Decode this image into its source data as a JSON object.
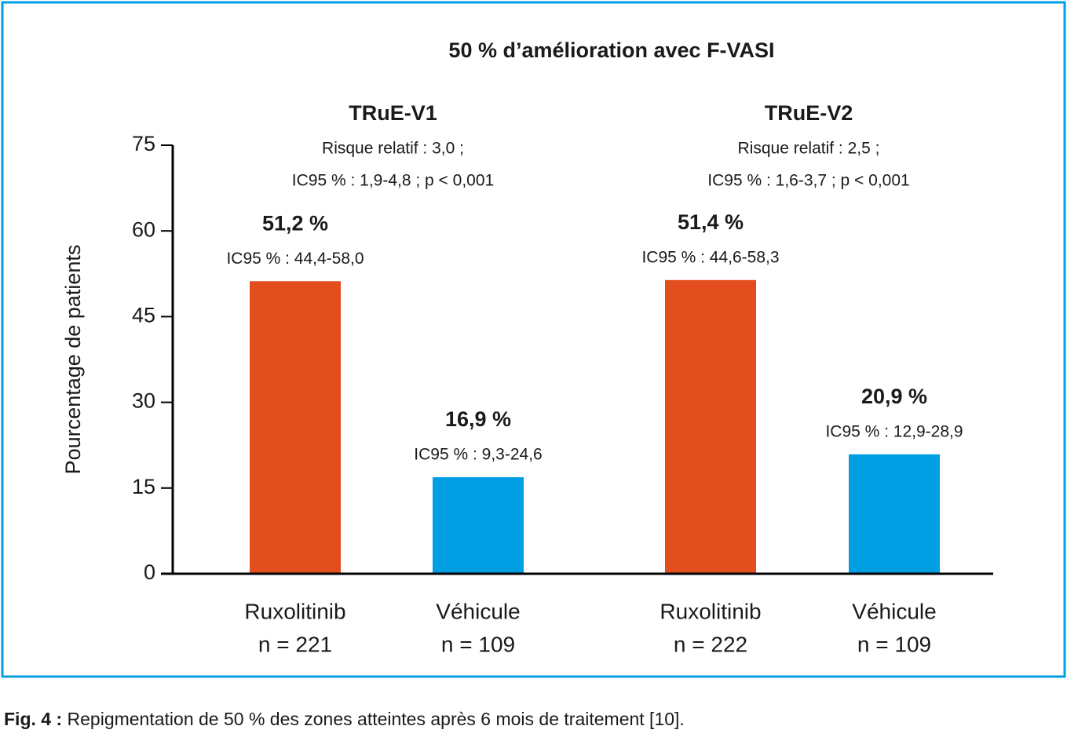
{
  "chart_data": {
    "type": "bar",
    "title": "50 % d’amélioration avec F-VASI",
    "y_label": "Pourcentage de patients",
    "ylim": [
      0,
      75
    ],
    "yticks": [
      0,
      15,
      30,
      45,
      60,
      75
    ],
    "groups": [
      {
        "name": "TRuE-V1",
        "notes": [
          "Risque relatif : 3,0 ;",
          "IC95 % : 1,9-4,8 ; p < 0,001"
        ]
      },
      {
        "name": "TRuE-V2",
        "notes": [
          "Risque relatif : 2,5 ;",
          "IC95 % : 1,6-3,7 ; p < 0,001"
        ]
      }
    ],
    "categories": [
      "Ruxolitinib",
      "Véhicule",
      "Ruxolitinib",
      "Véhicule"
    ],
    "category_counts": [
      "n = 221",
      "n = 109",
      "n = 222",
      "n = 109"
    ],
    "values": [
      51.2,
      16.9,
      51.4,
      20.9
    ],
    "value_labels": [
      "51,2 %",
      "16,9 %",
      "51,4 %",
      "20,9 %"
    ],
    "ci_labels": [
      "IC95 % : 44,4-58,0",
      "IC95 % : 9,3-24,6",
      "IC95 % : 44,6-58,3",
      "IC95 % : 12,9-28,9"
    ],
    "colors": [
      "#e34e1e",
      "#009fe3",
      "#e34e1e",
      "#009fe3"
    ]
  },
  "caption": {
    "label": "Fig. 4 :",
    "text": "Repigmentation de 50 % des zones atteintes après 6 mois de traitement [10]."
  }
}
